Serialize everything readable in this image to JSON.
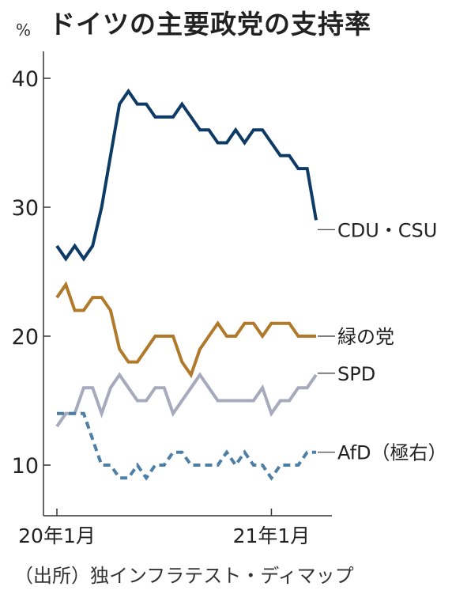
{
  "title": "ドイツの主要政党の支持率",
  "unit": "%",
  "source": "（出所）独インフラテスト・ディマップ",
  "chart_data": {
    "type": "line",
    "title": "ドイツの主要政党の支持率",
    "ylabel": "%",
    "xlabel": "",
    "ylim": [
      5,
      43
    ],
    "yticks": [
      10,
      20,
      30,
      40
    ],
    "x_start_label": "20年1月",
    "x_tick_labels": [
      {
        "label": "20年1月",
        "index": 0
      },
      {
        "label": "21年1月",
        "index": 24
      }
    ],
    "x_count": 30,
    "grid": false,
    "legend": "inline-right",
    "series": [
      {
        "name": "CDU・CSU",
        "color": "#0e3a66",
        "dash": "solid",
        "values": [
          27,
          26,
          27,
          26,
          27,
          30,
          34,
          38,
          39,
          38,
          38,
          37,
          37,
          37,
          38,
          37,
          36,
          36,
          35,
          35,
          36,
          35,
          36,
          36,
          35,
          34,
          34,
          33,
          33,
          29
        ]
      },
      {
        "name": "緑の党",
        "color": "#b07a2a",
        "dash": "solid",
        "values": [
          23,
          24,
          22,
          22,
          23,
          23,
          22,
          19,
          18,
          18,
          19,
          20,
          20,
          20,
          18,
          17,
          19,
          20,
          21,
          20,
          20,
          21,
          21,
          20,
          21,
          21,
          21,
          20,
          20,
          20
        ]
      },
      {
        "name": "SPD",
        "color": "#a7a9bd",
        "dash": "solid",
        "values": [
          13,
          14,
          14,
          16,
          16,
          14,
          16,
          17,
          16,
          15,
          15,
          16,
          16,
          14,
          15,
          16,
          17,
          16,
          15,
          15,
          15,
          15,
          15,
          16,
          14,
          15,
          15,
          16,
          16,
          17
        ]
      },
      {
        "name": "AfD（極右）",
        "color": "#4d7fa6",
        "dash": "dashed",
        "values": [
          14,
          14,
          14,
          14,
          12,
          10,
          10,
          9,
          9,
          10,
          9,
          10,
          10,
          11,
          11,
          10,
          10,
          10,
          10,
          11,
          10,
          11,
          10,
          10,
          9,
          10,
          10,
          10,
          11,
          11
        ]
      }
    ]
  }
}
